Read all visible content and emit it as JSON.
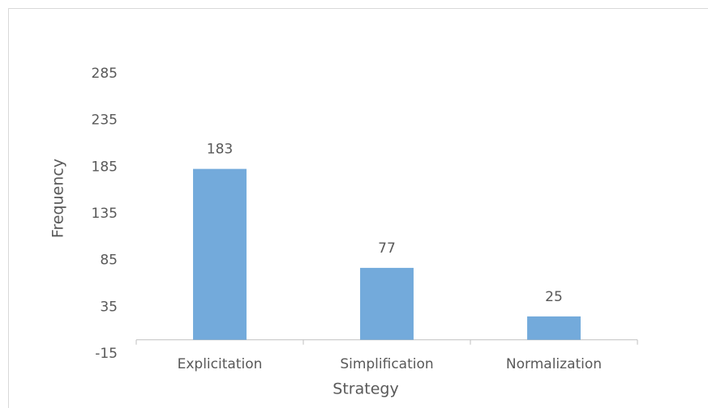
{
  "chart_data": {
    "type": "bar",
    "x_label": "Strategy",
    "y_label": "Frequency",
    "categories": [
      "Explicitation",
      "Simplification",
      "Normalization"
    ],
    "values": [
      183,
      77,
      25
    ],
    "color": "#5b9bd5",
    "ylim": [
      -15,
      285
    ],
    "yticks": [
      -15,
      35,
      85,
      135,
      185,
      235,
      285
    ],
    "grid": false
  }
}
